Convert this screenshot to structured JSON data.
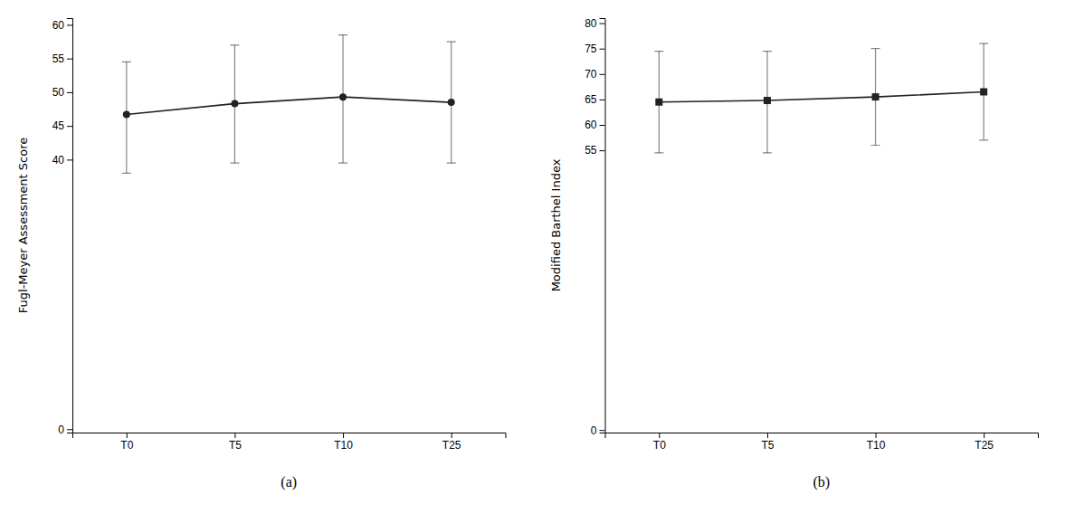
{
  "chart_data": [
    {
      "type": "line",
      "title": "(a)",
      "y_label": "Fugl-Meyer Assessment Score",
      "categories": [
        "T0",
        "T5",
        "T10",
        "T25"
      ],
      "values": [
        46.7,
        48.3,
        49.3,
        48.5
      ],
      "lower_errors": [
        8.7,
        8.8,
        9.8,
        9.0
      ],
      "upper_errors": [
        7.8,
        8.7,
        9.2,
        9.0
      ],
      "ylim": [
        -0.5,
        61
      ],
      "yticks": [
        0,
        40,
        45,
        50,
        55,
        60
      ],
      "color": "#222222",
      "marker": "circle"
    },
    {
      "type": "line",
      "title": "(b)",
      "y_label": "Modified Barthel Index",
      "categories": [
        "T0",
        "T5",
        "T10",
        "T25"
      ],
      "values": [
        64.5,
        64.8,
        65.5,
        66.5
      ],
      "lower_errors": [
        10.0,
        10.3,
        9.5,
        9.5
      ],
      "upper_errors": [
        10.0,
        9.7,
        9.5,
        9.5
      ],
      "ylim": [
        -0.5,
        81
      ],
      "yticks": [
        0,
        55,
        60,
        65,
        70,
        75,
        80
      ],
      "color": "#222222",
      "marker": "square"
    }
  ]
}
